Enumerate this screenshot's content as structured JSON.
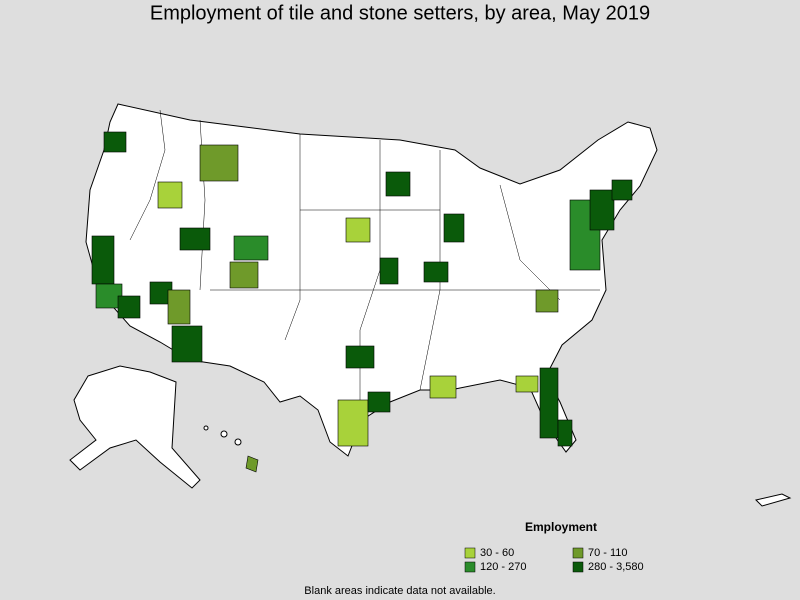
{
  "title": "Employment of tile and stone setters, by area, May 2019",
  "legend": {
    "title": "Employment",
    "items": [
      {
        "label": "30 - 60",
        "color": "#a8d23a"
      },
      {
        "label": "70 - 110",
        "color": "#6f9a2a"
      },
      {
        "label": "120 - 270",
        "color": "#2a8c2a"
      },
      {
        "label": "280 - 3,580",
        "color": "#0a5a0a"
      }
    ]
  },
  "footnote": "Blank areas indicate data not available."
}
